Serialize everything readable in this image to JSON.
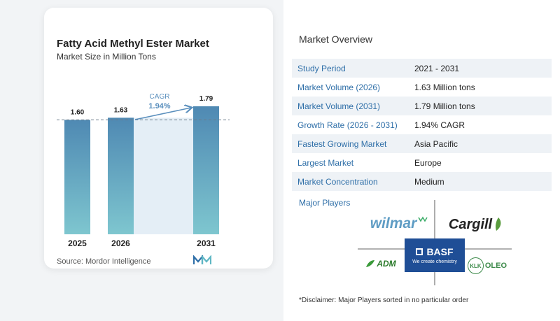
{
  "chart_data": {
    "type": "bar",
    "title": "Fatty Acid Methyl Ester Market",
    "subtitle": "Market Size in Million Tons",
    "categories": [
      "2025",
      "2026",
      "2031"
    ],
    "values": [
      1.6,
      1.63,
      1.79
    ],
    "value_labels": [
      "1.60",
      "1.63",
      "1.79"
    ],
    "annotation": {
      "label": "CAGR",
      "value": "1.94%"
    },
    "colors": {
      "bar_top": "#4f89b3",
      "bar_bottom": "#7ec6cf",
      "band": "#e4eef6",
      "arrow": "#5a8fbd"
    }
  },
  "source": "Source:  Mordor Intelligence",
  "overview": {
    "title": "Market Overview",
    "rows": [
      {
        "label": "Study Period",
        "value": "2021 - 2031"
      },
      {
        "label": "Market Volume (2026)",
        "value": "1.63 Million tons"
      },
      {
        "label": "Market Volume (2031)",
        "value": "1.79 Million tons"
      },
      {
        "label": "Growth Rate (2026 - 2031)",
        "value": "1.94% CAGR"
      },
      {
        "label": "Fastest Growing Market",
        "value": "Asia Pacific"
      },
      {
        "label": "Largest Market",
        "value": "Europe"
      },
      {
        "label": "Market Concentration",
        "value": "Medium"
      }
    ]
  },
  "players": {
    "title": "Major Players",
    "logos": {
      "wilmar": "wilmar",
      "cargill": "Cargill",
      "basf": "BASF",
      "basf_tagline": "We create chemistry",
      "adm": "ADM",
      "klk": "KLK",
      "klk_suffix": "OLEO"
    }
  },
  "disclaimer": "*Disclaimer: Major Players sorted in no particular order"
}
